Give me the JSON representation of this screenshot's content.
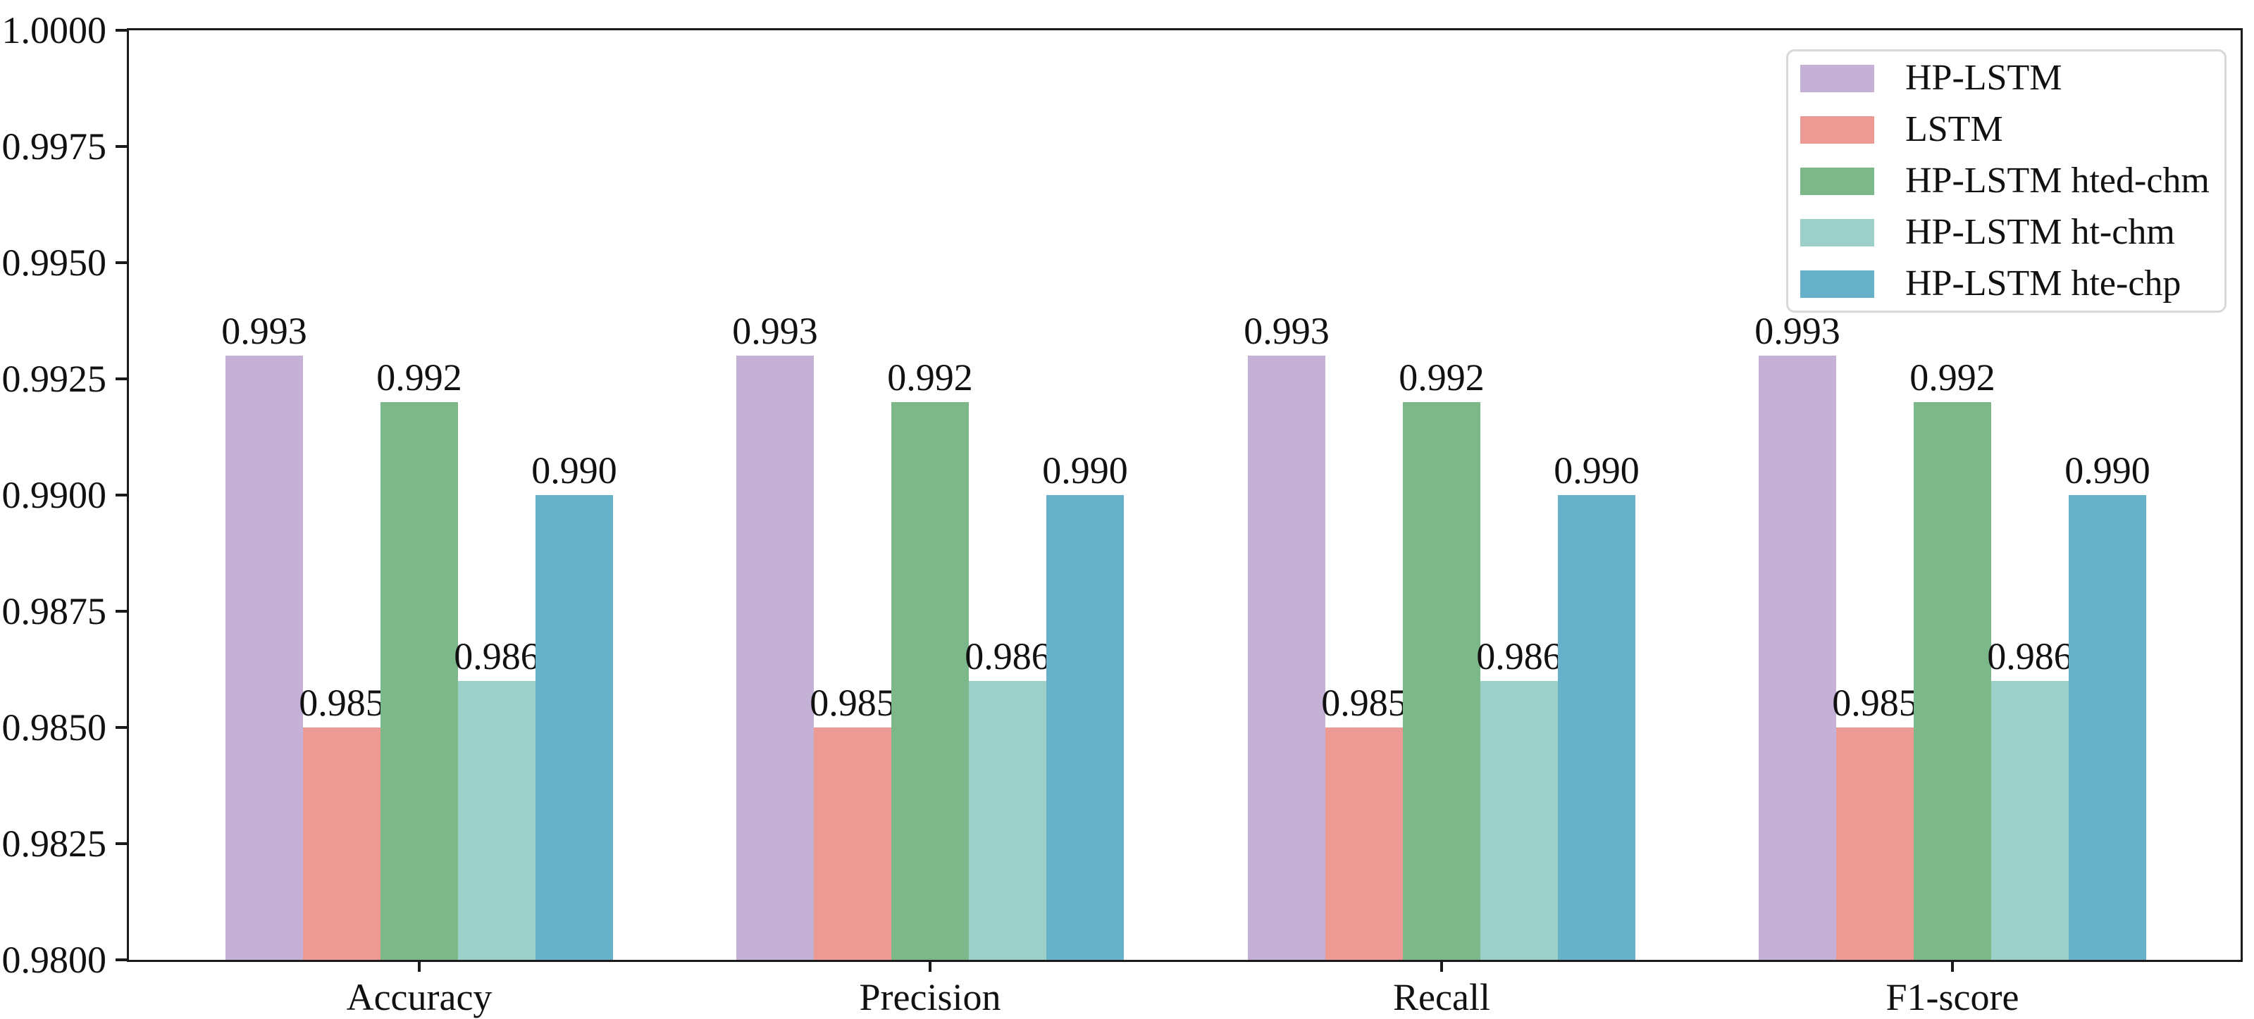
{
  "figure": {
    "background": "#ffffff",
    "axis_color": "#1a1a1a",
    "text_color": "#111111",
    "legend_border_color": "#d8d8d8"
  },
  "chart_data": {
    "type": "bar",
    "title": "",
    "xlabel": "",
    "ylabel": "",
    "grid": false,
    "legend_position": "upper right",
    "categories": [
      "Accuracy",
      "Precision",
      "Recall",
      "F1-score"
    ],
    "series": [
      {
        "name": "HP-LSTM",
        "color": "#c4b1d5",
        "values": [
          0.993,
          0.993,
          0.993,
          0.993
        ]
      },
      {
        "name": "LSTM",
        "color": "#ec9a93",
        "values": [
          0.985,
          0.985,
          0.985,
          0.985
        ]
      },
      {
        "name": "HP-LSTM hted-chm",
        "color": "#7db88a",
        "values": [
          0.992,
          0.992,
          0.992,
          0.992
        ]
      },
      {
        "name": "HP-LSTM ht-chm",
        "color": "#9ccfc7",
        "values": [
          0.986,
          0.986,
          0.986,
          0.986
        ]
      },
      {
        "name": "HP-LSTM hte-chp",
        "color": "#67b2c8",
        "values": [
          0.99,
          0.99,
          0.99,
          0.99
        ]
      }
    ],
    "ylim": [
      0.98,
      1.0
    ],
    "yticks": [
      0.98,
      0.9825,
      0.985,
      0.9875,
      0.99,
      0.9925,
      0.995,
      0.9975,
      1.0
    ],
    "ytick_decimals": 4,
    "bar_label_decimals": 3,
    "bar_labels_shown": true
  }
}
